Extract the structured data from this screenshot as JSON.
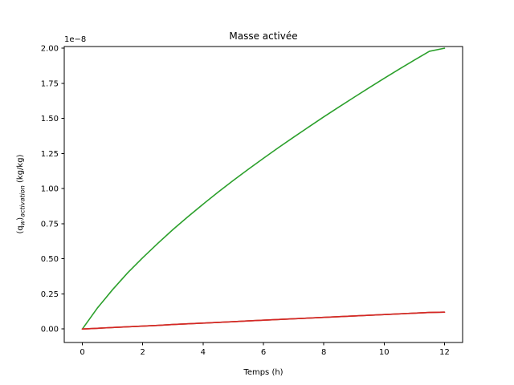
{
  "chart_data": {
    "type": "line",
    "title": "Masse activée",
    "xlabel": "Temps (h)",
    "ylabel_main": "(q",
    "ylabel_sub1": "w",
    "ylabel_mid": ")",
    "ylabel_sub2": "activation",
    "ylabel_unit": " (kg/kg)",
    "y_multiplier": "1e−8",
    "xlim": [
      -0.6,
      12.6
    ],
    "ylim": [
      -0.096,
      2.012
    ],
    "x_ticks": [
      0,
      2,
      4,
      6,
      8,
      10,
      12
    ],
    "x_tick_labels": [
      "0",
      "2",
      "4",
      "6",
      "8",
      "10",
      "12"
    ],
    "y_ticks": [
      0,
      0.25,
      0.5,
      0.75,
      1.0,
      1.25,
      1.5,
      1.75,
      2.0
    ],
    "y_tick_labels": [
      "0.00",
      "0.25",
      "0.50",
      "0.75",
      "1.00",
      "1.25",
      "1.50",
      "1.75",
      "2.00"
    ],
    "grid": false,
    "x": [
      0,
      0.5,
      1,
      1.5,
      2,
      2.5,
      3,
      3.5,
      4,
      4.5,
      5,
      5.5,
      6,
      6.5,
      7,
      7.5,
      8,
      8.5,
      9,
      9.5,
      10,
      10.5,
      11,
      11.5,
      12
    ],
    "series": [
      {
        "color": "#2ca02c",
        "values": [
          0.0,
          0.15,
          0.28,
          0.4,
          0.508,
          0.61,
          0.708,
          0.8,
          0.889,
          0.975,
          1.058,
          1.138,
          1.216,
          1.292,
          1.366,
          1.439,
          1.511,
          1.581,
          1.65,
          1.718,
          1.785,
          1.851,
          1.915,
          1.978,
          2.0
        ]
      },
      {
        "color": "#1f77b4",
        "values": [
          0.0,
          0.005,
          0.011,
          0.016,
          0.021,
          0.026,
          0.032,
          0.037,
          0.042,
          0.047,
          0.052,
          0.058,
          0.063,
          0.068,
          0.073,
          0.078,
          0.083,
          0.088,
          0.093,
          0.098,
          0.103,
          0.108,
          0.113,
          0.118,
          0.12
        ]
      },
      {
        "color": "#ff7f0e",
        "values": [
          0.0,
          0.005,
          0.011,
          0.016,
          0.021,
          0.026,
          0.032,
          0.037,
          0.042,
          0.047,
          0.052,
          0.058,
          0.063,
          0.068,
          0.073,
          0.078,
          0.083,
          0.088,
          0.093,
          0.098,
          0.103,
          0.108,
          0.113,
          0.118,
          0.12
        ]
      },
      {
        "color": "#d62728",
        "values": [
          0.0,
          0.005,
          0.011,
          0.016,
          0.021,
          0.026,
          0.032,
          0.037,
          0.042,
          0.047,
          0.052,
          0.058,
          0.063,
          0.068,
          0.073,
          0.078,
          0.083,
          0.088,
          0.093,
          0.098,
          0.103,
          0.108,
          0.113,
          0.118,
          0.12
        ]
      }
    ]
  }
}
